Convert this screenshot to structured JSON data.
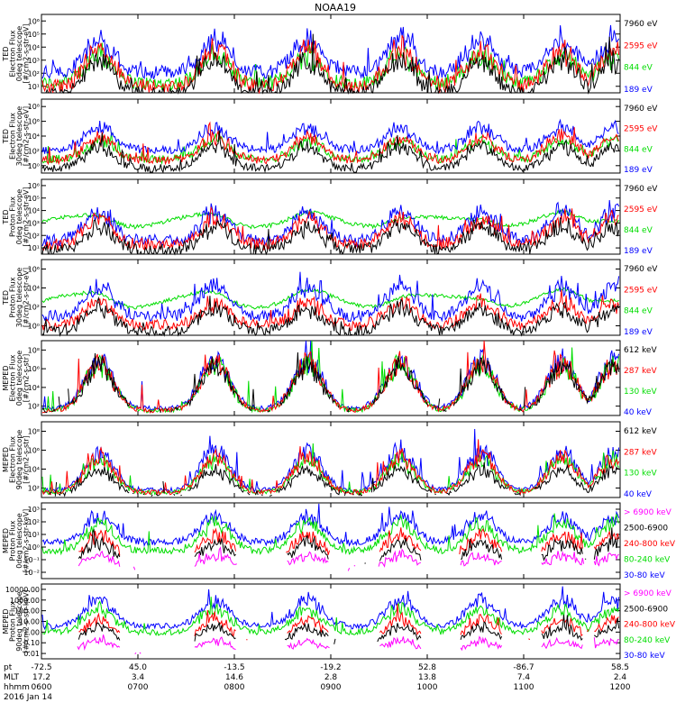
{
  "title": "NOAA19",
  "colors": {
    "blue": "#0000ff",
    "red": "#ff0000",
    "green": "#00dd00",
    "black": "#000000",
    "magenta": "#ff00ff"
  },
  "footer": {
    "row_labels": [
      "pt",
      "MLT",
      "hhmm",
      "2016 Jan 14"
    ],
    "ticks": [
      {
        "pt": "-72.5",
        "mlt": "17.2",
        "hhmm": "0600"
      },
      {
        "pt": "45.0",
        "mlt": "3.4",
        "hhmm": "0700"
      },
      {
        "pt": "-13.5",
        "mlt": "14.6",
        "hhmm": "0800"
      },
      {
        "pt": "-19.2",
        "mlt": "2.8",
        "hhmm": "0900"
      },
      {
        "pt": "52.8",
        "mlt": "13.8",
        "hhmm": "1000"
      },
      {
        "pt": "-86.7",
        "mlt": "7.4",
        "hhmm": "1100"
      },
      {
        "pt": "58.5",
        "mlt": "2.4",
        "hhmm": "1200"
      }
    ]
  },
  "chart_data": [
    {
      "type": "line",
      "instrument": "TED",
      "ylabel": [
        "TED",
        "Electron Flux",
        "0deg telescope",
        "[#/cm2-s-str-eV]"
      ],
      "yticks": [
        "10¹",
        "10²",
        "10³",
        "10⁴",
        "10⁵",
        "10⁶"
      ],
      "ylim": [
        1,
        6
      ],
      "legend": [
        {
          "name": "7960 eV",
          "color": "black"
        },
        {
          "name": "2595 eV",
          "color": "red"
        },
        {
          "name": "844 eV",
          "color": "green"
        },
        {
          "name": "189 eV",
          "color": "blue"
        }
      ],
      "levels": {
        "blue": [
          2.3,
          4.8
        ],
        "red": [
          1.4,
          4.3
        ],
        "green": [
          1.6,
          3.8
        ],
        "black": [
          0.9,
          3.6
        ]
      }
    },
    {
      "type": "line",
      "instrument": "TED",
      "ylabel": [
        "TED",
        "Electron Flux",
        "30deg telescope",
        "[#/cm2-s-str-eV]"
      ],
      "yticks": [
        "10⁰",
        "10²",
        "10⁴",
        "10⁶",
        "10⁸"
      ],
      "ylim": [
        0,
        8
      ],
      "legend": [
        {
          "name": "7960 eV",
          "color": "black"
        },
        {
          "name": "2595 eV",
          "color": "red"
        },
        {
          "name": "844 eV",
          "color": "green"
        },
        {
          "name": "189 eV",
          "color": "blue"
        }
      ],
      "levels": {
        "blue": [
          2.5,
          5.5
        ],
        "red": [
          1.4,
          4.5
        ],
        "green": [
          1.5,
          4
        ],
        "black": [
          0.5,
          3.5
        ]
      }
    },
    {
      "type": "line",
      "instrument": "TED",
      "ylabel": [
        "TED",
        "Proton Flux",
        "0deg telescope",
        "[#/cm2-s-str-eV]"
      ],
      "yticks": [
        "10¹",
        "10²",
        "10³",
        "10⁴",
        "10⁵",
        "10⁶"
      ],
      "ylim": [
        0.5,
        6
      ],
      "legend": [
        {
          "name": "7960 eV",
          "color": "black"
        },
        {
          "name": "2595 eV",
          "color": "red"
        },
        {
          "name": "844 eV",
          "color": "green"
        },
        {
          "name": "189 eV",
          "color": "blue"
        }
      ],
      "levels": {
        "blue": [
          1.5,
          4.2
        ],
        "red": [
          1.2,
          3.6
        ],
        "green": [
          2.5,
          3.8
        ],
        "black": [
          0.8,
          3
        ]
      }
    },
    {
      "type": "line",
      "instrument": "TED",
      "ylabel": [
        "TED",
        "Proton Flux",
        "30deg telescope",
        "[#/cm2-s-str-eV]"
      ],
      "yticks": [
        "10⁰",
        "10²",
        "10⁴",
        "10⁶"
      ],
      "ylim": [
        0,
        6
      ],
      "legend": [
        {
          "name": "7960 eV",
          "color": "black"
        },
        {
          "name": "2595 eV",
          "color": "red"
        },
        {
          "name": "844 eV",
          "color": "green"
        },
        {
          "name": "189 eV",
          "color": "blue"
        }
      ],
      "levels": {
        "blue": [
          1.5,
          4.5
        ],
        "red": [
          0.8,
          3
        ],
        "green": [
          2.2,
          3.9
        ],
        "black": [
          0.3,
          2.6
        ]
      }
    },
    {
      "type": "line",
      "instrument": "MEPED",
      "ylabel": [
        "MEPED",
        "Electron Flux",
        "0deg telescope",
        "[#/cm2-s-str]"
      ],
      "yticks": [
        "10²",
        "10⁴",
        "10⁶",
        "10⁸"
      ],
      "ylim": [
        1.5,
        9
      ],
      "legend": [
        {
          "name": "612 keV",
          "color": "black"
        },
        {
          "name": "287 keV",
          "color": "red"
        },
        {
          "name": "130 keV",
          "color": "green"
        },
        {
          "name": "40 keV",
          "color": "blue"
        }
      ],
      "levels": {
        "blue": [
          2.2,
          8.2
        ],
        "red": [
          2,
          7.9
        ],
        "green": [
          2,
          7.7
        ],
        "black": [
          2,
          7.5
        ]
      }
    },
    {
      "type": "line",
      "instrument": "MEPED",
      "ylabel": [
        "MEPED",
        "Electron Flux",
        "90deg telescope",
        "[#/cm2-s-str]"
      ],
      "yticks": [
        "10²",
        "10⁴",
        "10⁶",
        "10⁸"
      ],
      "ylim": [
        1.5,
        9
      ],
      "legend": [
        {
          "name": "612 keV",
          "color": "black"
        },
        {
          "name": "287 keV",
          "color": "red"
        },
        {
          "name": "130 keV",
          "color": "green"
        },
        {
          "name": "40 keV",
          "color": "blue"
        }
      ],
      "levels": {
        "blue": [
          2.2,
          7
        ],
        "red": [
          2,
          6.3
        ],
        "green": [
          2,
          6
        ],
        "black": [
          1.8,
          4.8
        ]
      }
    },
    {
      "type": "line",
      "instrument": "MEPED",
      "ylabel": [
        "MEPED",
        "Proton Flux",
        "0deg telescope",
        "[#/cm2-s-str-keV]"
      ],
      "yticks": [
        "10⁻²",
        "10⁻¹",
        "10⁰",
        "10¹",
        "10²",
        "10³"
      ],
      "ylim": [
        -2.2,
        3
      ],
      "legend": [
        {
          "name": "> 6900 keV",
          "color": "magenta"
        },
        {
          "name": "2500-6900",
          "color": "black"
        },
        {
          "name": "240-800 keV",
          "color": "red"
        },
        {
          "name": "80-240 keV",
          "color": "green"
        },
        {
          "name": "30-80 keV",
          "color": "blue"
        }
      ],
      "levels": {
        "blue": [
          0.3,
          2.5
        ],
        "green": [
          -0.3,
          2
        ],
        "red": [
          -0.9,
          1.2
        ],
        "black": [
          -1.2,
          0.6
        ],
        "magenta": [
          -1.5,
          -0.4
        ]
      }
    },
    {
      "type": "line",
      "instrument": "MEPED",
      "ylabel": [
        "MEPED",
        "Proton Flux",
        "90deg telescope",
        "[#/cm2-s-str-keV]"
      ],
      "yticks": [
        "0.01",
        "0.10",
        "1.00",
        "10.00",
        "100.00",
        "1000.00",
        "10000.00"
      ],
      "ylim": [
        -2.2,
        4
      ],
      "legend": [
        {
          "name": "> 6900 keV",
          "color": "magenta"
        },
        {
          "name": "2500-6900",
          "color": "black"
        },
        {
          "name": "240-800 keV",
          "color": "red"
        },
        {
          "name": "80-240 keV",
          "color": "green"
        },
        {
          "name": "30-80 keV",
          "color": "blue"
        }
      ],
      "levels": {
        "blue": [
          0.5,
          3.2
        ],
        "green": [
          0,
          2.4
        ],
        "red": [
          -0.7,
          1.5
        ],
        "black": [
          -1,
          0.8
        ],
        "magenta": [
          -1.6,
          -0.5
        ]
      }
    }
  ],
  "passes": [
    0.1,
    0.3,
    0.46,
    0.62,
    0.76,
    0.9,
    0.99
  ]
}
